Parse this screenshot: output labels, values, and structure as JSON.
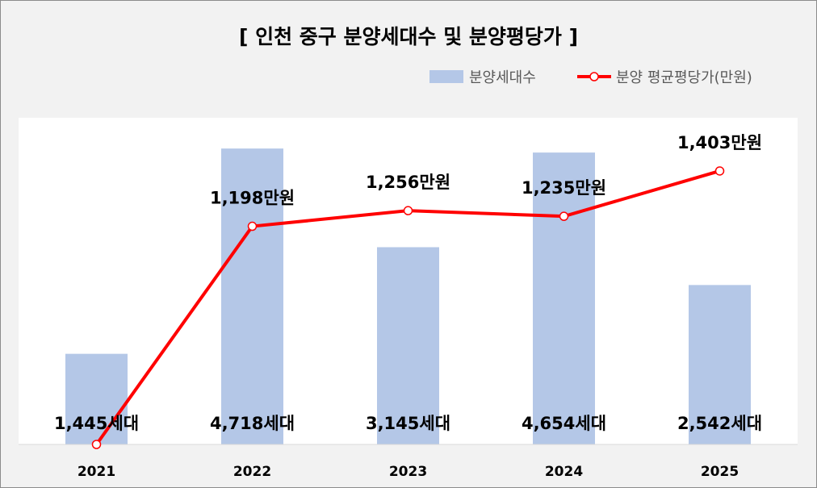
{
  "chart_data": {
    "type": "bar",
    "title": "[ 인천 중구 분양세대수 및 분양평당가 ]",
    "categories": [
      "2021",
      "2022",
      "2023",
      "2024",
      "2025"
    ],
    "series": [
      {
        "name": "분양세대수",
        "type": "bar",
        "color": "#b4c7e7",
        "values": [
          1445,
          4718,
          3145,
          4654,
          2542
        ],
        "labels": [
          "1,445세대",
          "4,718세대",
          "3,145세대",
          "4,654세대",
          "2,542세대"
        ]
      },
      {
        "name": "분양 평균평당가(만원)",
        "type": "line",
        "color": "#ff0000",
        "values": [
          390,
          1198,
          1256,
          1235,
          1403
        ],
        "labels": [
          "",
          "1,198만원",
          "1,256만원",
          "1,235만원",
          "1,403만원"
        ]
      }
    ],
    "bar_axis_range": [
      0,
      4900
    ],
    "line_axis_range": [
      390,
      1600
    ],
    "legend_position": "top-right",
    "grid": false
  }
}
